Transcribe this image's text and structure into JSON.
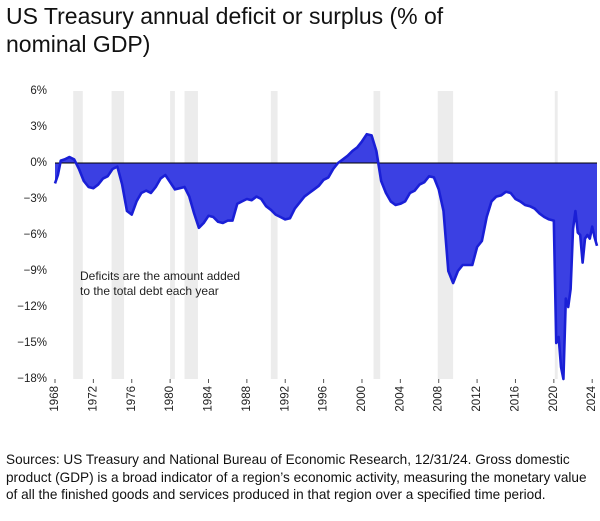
{
  "chart_data": {
    "type": "area",
    "title": "US Treasury annual deficit or surplus (% of nominal GDP)",
    "annotation": [
      "Deficits are the amount added",
      "to the total debt each year"
    ],
    "source": "Sources: US Treasury and National Bureau of Economic Research, 12/31/24. Gross domestic product (GDP) is a broad indicator of a region’s economic activity, measuring the monetary value of all the finished goods and services produced in that region over a specified time period.",
    "x": [
      1968,
      1968.3,
      1968.6,
      1969,
      1969.5,
      1970,
      1970.5,
      1971,
      1971.5,
      1972,
      1972.5,
      1973,
      1973.5,
      1974,
      1974.5,
      1975,
      1975.5,
      1976,
      1976.5,
      1977,
      1977.5,
      1978,
      1978.5,
      1979,
      1979.5,
      1980,
      1980.5,
      1981,
      1981.5,
      1982,
      1982.5,
      1983,
      1983.5,
      1984,
      1984.5,
      1985,
      1985.5,
      1986,
      1986.5,
      1987,
      1987.5,
      1988,
      1988.5,
      1989,
      1989.5,
      1990,
      1990.5,
      1991,
      1991.5,
      1992,
      1992.5,
      1993,
      1993.5,
      1994,
      1994.5,
      1995,
      1995.5,
      1996,
      1996.5,
      1997,
      1997.5,
      1998,
      1998.5,
      1999,
      1999.5,
      2000,
      2000.5,
      2001,
      2001.5,
      2002,
      2002.5,
      2003,
      2003.5,
      2004,
      2004.5,
      2005,
      2005.5,
      2006,
      2006.5,
      2007,
      2007.5,
      2008,
      2008.5,
      2009,
      2009.5,
      2010,
      2010.5,
      2011,
      2011.5,
      2012,
      2012.5,
      2013,
      2013.5,
      2014,
      2014.5,
      2015,
      2015.5,
      2016,
      2016.5,
      2017,
      2017.5,
      2018,
      2018.5,
      2019,
      2019.5,
      2020,
      2020.25,
      2020.5,
      2020.75,
      2021,
      2021.25,
      2021.5,
      2021.75,
      2022,
      2022.25,
      2022.5,
      2022.75,
      2023,
      2023.25,
      2023.5,
      2023.75,
      2024,
      2024.25,
      2024.5
    ],
    "values": [
      -1.7,
      -1.0,
      0.2,
      0.3,
      0.5,
      0.3,
      -0.5,
      -1.5,
      -2.0,
      -2.1,
      -1.8,
      -1.3,
      -1.1,
      -0.5,
      -0.3,
      -1.8,
      -4.0,
      -4.3,
      -3.2,
      -2.5,
      -2.3,
      -2.5,
      -2.0,
      -1.3,
      -1.0,
      -1.6,
      -2.2,
      -2.1,
      -2.0,
      -2.8,
      -4.2,
      -5.4,
      -5.0,
      -4.4,
      -4.5,
      -4.9,
      -5.0,
      -4.8,
      -4.8,
      -3.4,
      -3.2,
      -3.0,
      -3.1,
      -2.8,
      -3.0,
      -3.6,
      -3.9,
      -4.3,
      -4.5,
      -4.7,
      -4.6,
      -3.8,
      -3.3,
      -2.8,
      -2.5,
      -2.2,
      -1.9,
      -1.4,
      -1.2,
      -0.5,
      0.0,
      0.3,
      0.6,
      1.0,
      1.3,
      1.8,
      2.4,
      2.3,
      1.0,
      -1.5,
      -2.5,
      -3.2,
      -3.5,
      -3.4,
      -3.2,
      -2.5,
      -2.3,
      -1.8,
      -1.6,
      -1.1,
      -1.2,
      -2.2,
      -4.0,
      -9.0,
      -10.0,
      -9.0,
      -8.5,
      -8.5,
      -8.5,
      -7.0,
      -6.5,
      -4.5,
      -3.2,
      -2.8,
      -2.7,
      -2.4,
      -2.5,
      -3.0,
      -3.2,
      -3.5,
      -3.6,
      -3.8,
      -4.2,
      -4.5,
      -4.7,
      -4.8,
      -15.0,
      -14.5,
      -17.0,
      -18.0,
      -11.3,
      -12.0,
      -10.5,
      -5.5,
      -4.0,
      -5.8,
      -6.0,
      -8.3,
      -6.3,
      -6.0,
      -6.3,
      -5.3,
      -6.2,
      -6.9
    ],
    "color": "#1a1fd6",
    "fill_color": "#3b40e3",
    "recessions": [
      [
        1969.9,
        1970.9
      ],
      [
        1973.9,
        1975.2
      ],
      [
        1980.0,
        1980.5
      ],
      [
        1981.5,
        1982.9
      ],
      [
        1990.5,
        1991.2
      ],
      [
        2001.2,
        2001.9
      ],
      [
        2007.9,
        2009.5
      ],
      [
        2020.1,
        2020.4
      ]
    ],
    "recession_color": "#ececec",
    "xlim": [
      1968,
      2024.5
    ],
    "xticks": [
      1968,
      1972,
      1976,
      1980,
      1984,
      1988,
      1992,
      1996,
      2000,
      2004,
      2008,
      2012,
      2016,
      2020,
      2024
    ],
    "ylim": [
      -18,
      6
    ],
    "yticks": [
      {
        "value": 6,
        "label": "6%"
      },
      {
        "value": 3,
        "label": "3%"
      },
      {
        "value": 0,
        "label": "0%"
      },
      {
        "value": -3,
        "label": "−3%"
      },
      {
        "value": -6,
        "label": "−6%"
      },
      {
        "value": -9,
        "label": "−9%"
      },
      {
        "value": -12,
        "label": "−12%"
      },
      {
        "value": -15,
        "label": "−15%"
      },
      {
        "value": -18,
        "label": "−18%"
      }
    ],
    "zero_line": true,
    "grid": false
  }
}
